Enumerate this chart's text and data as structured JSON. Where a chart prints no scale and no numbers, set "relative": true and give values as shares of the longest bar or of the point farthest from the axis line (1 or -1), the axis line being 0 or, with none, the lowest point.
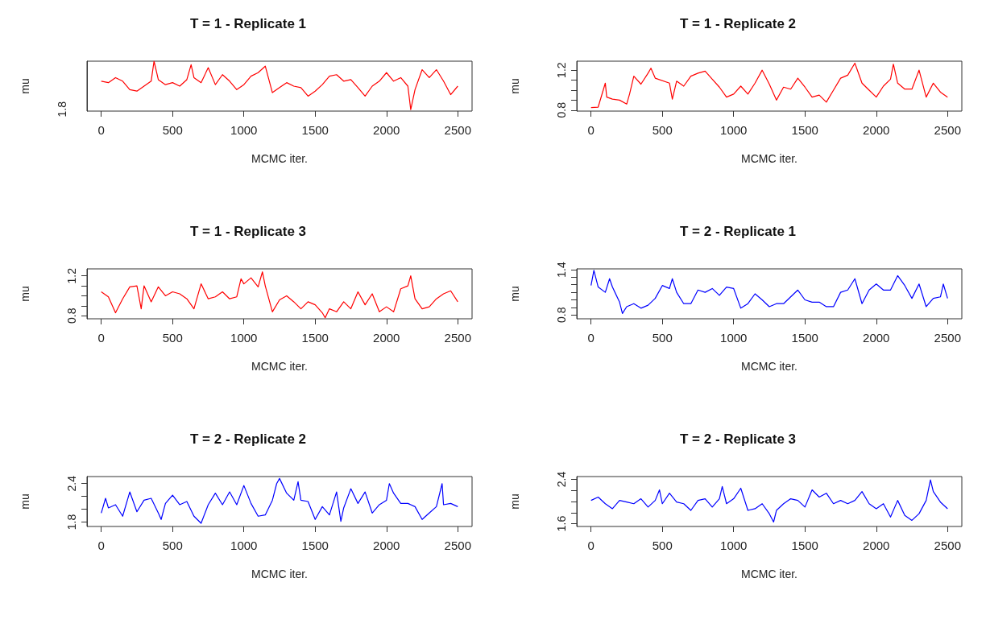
{
  "chart_data": [
    {
      "type": "line",
      "title": "T = 1 - Replicate 1",
      "xlabel": "MCMC iter.",
      "ylabel": "mu",
      "relative": true,
      "annotations": [
        "1.8"
      ],
      "xlim": [
        -100,
        2600
      ],
      "xticks": [
        0,
        500,
        1000,
        1500,
        2000,
        2500
      ],
      "series": [
        {
          "color": "#ff0000",
          "x": [
            0,
            50,
            100,
            150,
            200,
            250,
            300,
            350,
            370,
            400,
            450,
            500,
            550,
            600,
            630,
            650,
            700,
            750,
            800,
            850,
            900,
            950,
            1000,
            1050,
            1100,
            1150,
            1200,
            1250,
            1300,
            1350,
            1400,
            1450,
            1500,
            1550,
            1600,
            1650,
            1700,
            1750,
            1800,
            1850,
            1900,
            1950,
            2000,
            2050,
            2100,
            2150,
            2170,
            2200,
            2250,
            2300,
            2350,
            2400,
            2450,
            2500
          ],
          "values": [
            0.6,
            0.57,
            0.67,
            0.6,
            0.43,
            0.4,
            0.5,
            0.6,
            1.0,
            0.63,
            0.53,
            0.57,
            0.5,
            0.63,
            0.93,
            0.67,
            0.57,
            0.87,
            0.53,
            0.73,
            0.6,
            0.43,
            0.53,
            0.7,
            0.77,
            0.9,
            0.37,
            0.47,
            0.57,
            0.5,
            0.47,
            0.3,
            0.4,
            0.53,
            0.7,
            0.73,
            0.6,
            0.63,
            0.47,
            0.3,
            0.5,
            0.6,
            0.77,
            0.6,
            0.67,
            0.5,
            0.03,
            0.43,
            0.83,
            0.67,
            0.83,
            0.6,
            0.33,
            0.5
          ]
        }
      ]
    },
    {
      "type": "line",
      "title": "T = 1 - Replicate 2",
      "xlabel": "MCMC iter.",
      "ylabel": "mu",
      "xlim": [
        -100,
        2600
      ],
      "xticks": [
        0,
        500,
        1000,
        1500,
        2000,
        2500
      ],
      "ylim": [
        0.79,
        1.29
      ],
      "yticks": [
        0.8,
        {
          "value": 0.9,
          "label": null
        },
        {
          "value": 1.0,
          "label": null
        },
        {
          "value": 1.1,
          "label": null
        },
        1.2
      ],
      "series": [
        {
          "color": "#ff0000",
          "x": [
            0,
            50,
            100,
            110,
            150,
            200,
            250,
            270,
            300,
            350,
            400,
            420,
            450,
            550,
            570,
            600,
            650,
            700,
            750,
            800,
            850,
            900,
            950,
            1000,
            1050,
            1100,
            1150,
            1200,
            1250,
            1300,
            1350,
            1400,
            1450,
            1500,
            1550,
            1600,
            1650,
            1700,
            1750,
            1800,
            1850,
            1900,
            1950,
            2000,
            2050,
            2100,
            2120,
            2150,
            2200,
            2250,
            2300,
            2350,
            2400,
            2450,
            2500
          ],
          "values": [
            0.826,
            0.83,
            1.07,
            0.93,
            0.91,
            0.9,
            0.86,
            0.96,
            1.14,
            1.06,
            1.17,
            1.22,
            1.12,
            1.07,
            0.91,
            1.09,
            1.04,
            1.14,
            1.17,
            1.19,
            1.11,
            1.03,
            0.93,
            0.96,
            1.04,
            0.96,
            1.07,
            1.2,
            1.06,
            0.9,
            1.03,
            1.01,
            1.12,
            1.03,
            0.93,
            0.95,
            0.88,
            1.0,
            1.12,
            1.15,
            1.27,
            1.07,
            1.0,
            0.93,
            1.04,
            1.11,
            1.26,
            1.07,
            1.01,
            1.01,
            1.2,
            0.93,
            1.07,
            0.98,
            0.93
          ]
        }
      ]
    },
    {
      "type": "line",
      "title": "T = 1 - Replicate 3",
      "xlabel": "MCMC iter.",
      "ylabel": "mu",
      "xlim": [
        -100,
        2600
      ],
      "xticks": [
        0,
        500,
        1000,
        1500,
        2000,
        2500
      ],
      "ylim": [
        0.77,
        1.27
      ],
      "yticks": [
        0.8,
        {
          "value": 0.9,
          "label": null
        },
        {
          "value": 1.0,
          "label": null
        },
        {
          "value": 1.1,
          "label": null
        },
        1.2
      ],
      "series": [
        {
          "color": "#ff0000",
          "x": [
            0,
            50,
            100,
            150,
            200,
            250,
            280,
            300,
            350,
            400,
            450,
            500,
            550,
            600,
            650,
            700,
            750,
            800,
            850,
            900,
            950,
            980,
            1000,
            1050,
            1100,
            1130,
            1150,
            1200,
            1250,
            1300,
            1350,
            1400,
            1450,
            1500,
            1550,
            1570,
            1600,
            1650,
            1700,
            1750,
            1800,
            1850,
            1900,
            1950,
            2000,
            2050,
            2100,
            2150,
            2170,
            2200,
            2250,
            2300,
            2350,
            2400,
            2450,
            2500
          ],
          "values": [
            1.04,
            0.99,
            0.83,
            0.97,
            1.09,
            1.1,
            0.87,
            1.1,
            0.94,
            1.09,
            1.0,
            1.04,
            1.02,
            0.97,
            0.87,
            1.12,
            0.97,
            0.99,
            1.04,
            0.97,
            0.99,
            1.17,
            1.12,
            1.18,
            1.09,
            1.24,
            1.1,
            0.84,
            0.96,
            1.0,
            0.94,
            0.87,
            0.94,
            0.91,
            0.83,
            0.78,
            0.87,
            0.84,
            0.94,
            0.87,
            1.04,
            0.91,
            1.02,
            0.84,
            0.89,
            0.84,
            1.07,
            1.1,
            1.2,
            0.97,
            0.87,
            0.89,
            0.97,
            1.02,
            1.05,
            0.94
          ]
        }
      ]
    },
    {
      "type": "line",
      "title": "T = 2 - Replicate 1",
      "xlabel": "MCMC iter.",
      "ylabel": "mu",
      "xlim": [
        -100,
        2600
      ],
      "xticks": [
        0,
        500,
        1000,
        1500,
        2000,
        2500
      ],
      "ylim": [
        0.75,
        1.41
      ],
      "yticks": [
        0.8,
        {
          "value": 0.9,
          "label": null
        },
        {
          "value": 1.0,
          "label": null
        },
        {
          "value": 1.1,
          "label": null
        },
        {
          "value": 1.2,
          "label": null
        },
        {
          "value": 1.3,
          "label": null
        },
        1.4
      ],
      "series": [
        {
          "color": "#0000ff",
          "x": [
            0,
            20,
            50,
            100,
            130,
            150,
            200,
            220,
            250,
            300,
            350,
            400,
            450,
            500,
            550,
            570,
            600,
            650,
            700,
            750,
            800,
            850,
            900,
            950,
            1000,
            1050,
            1100,
            1150,
            1200,
            1250,
            1300,
            1350,
            1400,
            1450,
            1500,
            1550,
            1600,
            1650,
            1700,
            1750,
            1800,
            1850,
            1900,
            1950,
            2000,
            2050,
            2100,
            2150,
            2200,
            2250,
            2300,
            2350,
            2400,
            2450,
            2470,
            2500
          ],
          "values": [
            1.19,
            1.39,
            1.17,
            1.1,
            1.28,
            1.17,
            0.97,
            0.82,
            0.91,
            0.95,
            0.89,
            0.93,
            1.02,
            1.19,
            1.15,
            1.28,
            1.1,
            0.95,
            0.95,
            1.13,
            1.1,
            1.15,
            1.06,
            1.17,
            1.15,
            0.89,
            0.95,
            1.08,
            1.0,
            0.91,
            0.95,
            0.95,
            1.04,
            1.13,
            1.0,
            0.97,
            0.97,
            0.91,
            0.91,
            1.1,
            1.13,
            1.28,
            0.95,
            1.13,
            1.21,
            1.13,
            1.13,
            1.32,
            1.19,
            1.02,
            1.21,
            0.91,
            1.02,
            1.04,
            1.21,
            1.02
          ]
        }
      ]
    },
    {
      "type": "line",
      "title": "T = 2 - Replicate 2",
      "xlabel": "MCMC iter.",
      "ylabel": "mu",
      "xlim": [
        -100,
        2600
      ],
      "xticks": [
        0,
        500,
        1000,
        1500,
        2000,
        2500
      ],
      "ylim": [
        1.73,
        2.51
      ],
      "yticks": [
        1.8,
        {
          "value": 2.0,
          "label": null
        },
        {
          "value": 2.2,
          "label": null
        },
        2.4
      ],
      "series": [
        {
          "color": "#0000ff",
          "x": [
            0,
            30,
            50,
            100,
            150,
            200,
            250,
            300,
            350,
            400,
            420,
            450,
            500,
            550,
            600,
            650,
            700,
            750,
            800,
            850,
            900,
            950,
            1000,
            1050,
            1100,
            1150,
            1200,
            1230,
            1250,
            1300,
            1350,
            1380,
            1400,
            1450,
            1500,
            1550,
            1600,
            1650,
            1680,
            1700,
            1750,
            1800,
            1850,
            1900,
            1950,
            2000,
            2020,
            2050,
            2100,
            2150,
            2200,
            2250,
            2300,
            2350,
            2390,
            2400,
            2450,
            2500
          ],
          "values": [
            1.94,
            2.17,
            2.02,
            2.07,
            1.89,
            2.27,
            1.96,
            2.14,
            2.17,
            1.94,
            1.84,
            2.09,
            2.22,
            2.07,
            2.12,
            1.89,
            1.78,
            2.07,
            2.25,
            2.07,
            2.27,
            2.07,
            2.37,
            2.09,
            1.89,
            1.91,
            2.14,
            2.4,
            2.48,
            2.25,
            2.14,
            2.43,
            2.14,
            2.12,
            1.84,
            2.04,
            1.91,
            2.27,
            1.81,
            2.02,
            2.32,
            2.09,
            2.27,
            1.94,
            2.07,
            2.14,
            2.4,
            2.25,
            2.09,
            2.09,
            2.04,
            1.84,
            1.94,
            2.04,
            2.4,
            2.07,
            2.09,
            2.04
          ]
        }
      ]
    },
    {
      "type": "line",
      "title": "T = 2 - Replicate 3",
      "xlabel": "MCMC iter.",
      "ylabel": "mu",
      "xlim": [
        -100,
        2600
      ],
      "xticks": [
        0,
        500,
        1000,
        1500,
        2000,
        2500
      ],
      "ylim": [
        1.55,
        2.45
      ],
      "yticks": [
        1.6,
        {
          "value": 1.8,
          "label": null
        },
        {
          "value": 2.0,
          "label": null
        },
        {
          "value": 2.2,
          "label": null
        },
        2.4
      ],
      "series": [
        {
          "color": "#0000ff",
          "x": [
            0,
            50,
            100,
            150,
            200,
            250,
            300,
            350,
            400,
            450,
            480,
            500,
            550,
            600,
            650,
            700,
            750,
            800,
            850,
            900,
            920,
            950,
            1000,
            1050,
            1100,
            1150,
            1200,
            1250,
            1280,
            1300,
            1350,
            1400,
            1450,
            1500,
            1550,
            1600,
            1650,
            1700,
            1750,
            1800,
            1850,
            1900,
            1950,
            2000,
            2050,
            2100,
            2150,
            2200,
            2250,
            2300,
            2350,
            2380,
            2400,
            2450,
            2500
          ],
          "values": [
            2.02,
            2.08,
            1.96,
            1.87,
            2.02,
            1.99,
            1.96,
            2.05,
            1.9,
            2.02,
            2.21,
            1.96,
            2.15,
            1.99,
            1.96,
            1.84,
            2.02,
            2.05,
            1.9,
            2.05,
            2.27,
            1.96,
            2.05,
            2.24,
            1.84,
            1.87,
            1.96,
            1.78,
            1.63,
            1.84,
            1.96,
            2.05,
            2.02,
            1.9,
            2.21,
            2.08,
            2.15,
            1.96,
            2.02,
            1.96,
            2.02,
            2.18,
            1.96,
            1.87,
            1.96,
            1.72,
            2.02,
            1.75,
            1.66,
            1.78,
            2.02,
            2.39,
            2.18,
            1.99,
            1.87
          ]
        }
      ]
    }
  ]
}
